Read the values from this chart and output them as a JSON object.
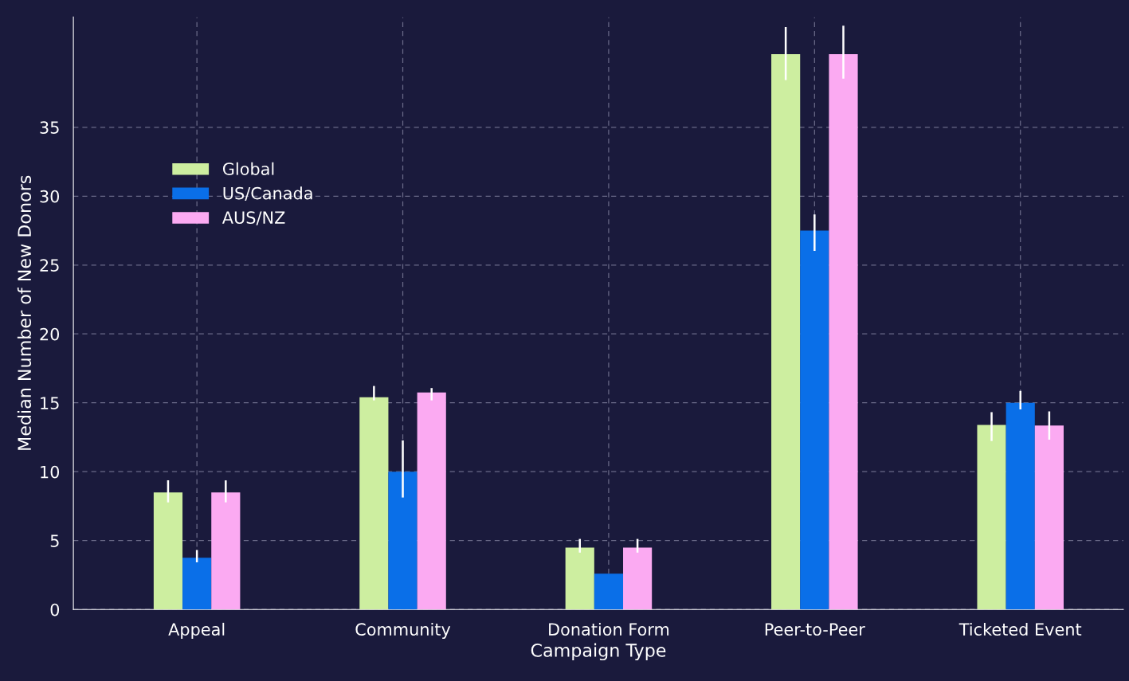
{
  "chart_data": {
    "type": "bar",
    "xlabel": "Campaign Type",
    "ylabel": "Median Number of New Donors",
    "categories": [
      "Appeal",
      "Community",
      "Donation Form",
      "Peer-to-Peer",
      "Ticketed Event"
    ],
    "series": [
      {
        "name": "Global",
        "color": "#cdeea0",
        "values": [
          8.5,
          15.4,
          4.5,
          40.3,
          13.4
        ],
        "errors": [
          [
            7.85,
            9.3
          ],
          [
            15.25,
            16.15
          ],
          [
            4.2,
            5.05
          ],
          [
            38.5,
            42.2
          ],
          [
            12.3,
            14.25
          ]
        ]
      },
      {
        "name": "US/Canada",
        "color": "#0a6fe8",
        "values": [
          3.75,
          10.0,
          2.6,
          27.5,
          15.0
        ],
        "errors": [
          [
            3.5,
            4.25
          ],
          [
            8.2,
            12.2
          ],
          null,
          [
            26.1,
            28.6
          ],
          [
            14.6,
            15.8
          ]
        ]
      },
      {
        "name": "AUS/NZ",
        "color": "#fbaaf2",
        "values": [
          8.5,
          15.75,
          4.5,
          40.3,
          13.35
        ],
        "errors": [
          [
            7.85,
            9.3
          ],
          [
            15.25,
            16.0
          ],
          [
            4.2,
            5.05
          ],
          [
            38.6,
            42.3
          ],
          [
            12.4,
            14.3
          ]
        ]
      }
    ],
    "ylim": [
      0,
      43
    ],
    "yticks": [
      0,
      5,
      10,
      15,
      20,
      25,
      30,
      35
    ],
    "grid": true,
    "legend": "top left"
  }
}
